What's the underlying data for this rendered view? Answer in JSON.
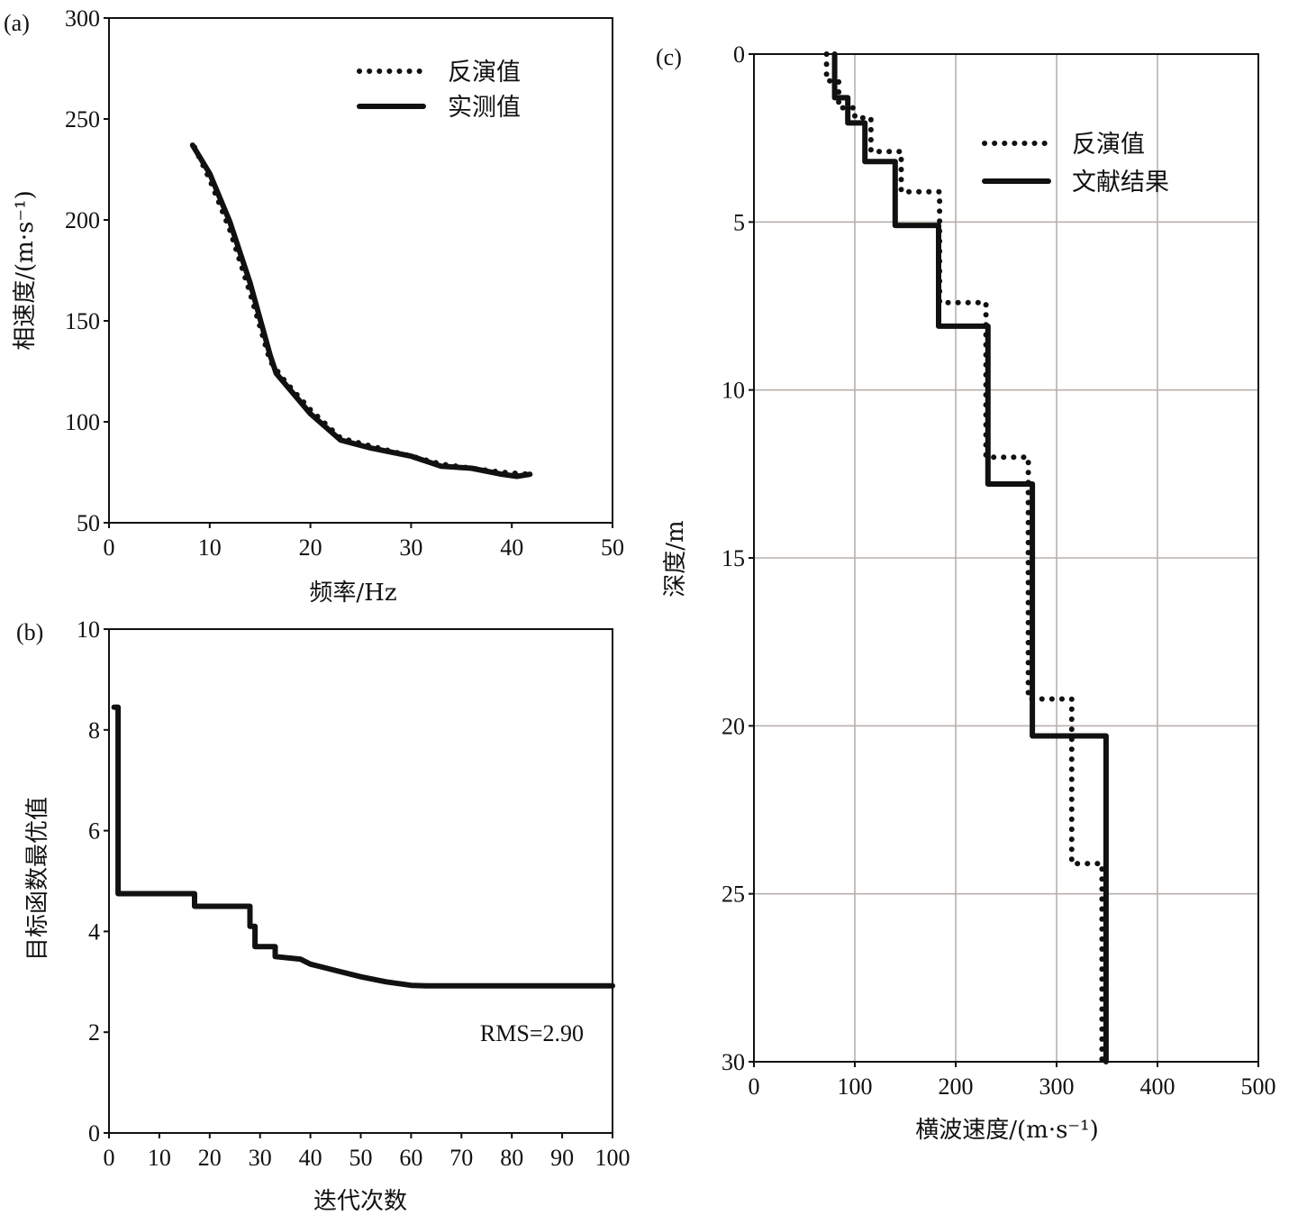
{
  "chart_data": [
    {
      "panel": "(a)",
      "type": "line",
      "xlabel": "频率/Hz",
      "ylabel": "相速度/(m·s⁻¹)",
      "xlim": [
        0,
        50
      ],
      "ylim": [
        50,
        300
      ],
      "xticks": [
        "0",
        "10",
        "20",
        "30",
        "40",
        "50"
      ],
      "yticks": [
        "50",
        "100",
        "150",
        "200",
        "250",
        "300"
      ],
      "legend": [
        "反演值",
        "实测值"
      ],
      "legend_position": "top-right",
      "grid": false,
      "series": [
        {
          "name": "反演值",
          "style": "dotted",
          "points": [
            [
              8.5,
              236
            ],
            [
              10,
              220
            ],
            [
              12,
              195
            ],
            [
              14,
              164
            ],
            [
              16,
              130
            ],
            [
              17.5,
              120
            ],
            [
              20,
              106
            ],
            [
              23,
              92
            ],
            [
              26,
              88
            ],
            [
              30,
              83
            ],
            [
              33,
              79
            ],
            [
              36,
              77
            ],
            [
              39,
              75
            ],
            [
              41.7,
              74
            ]
          ]
        },
        {
          "name": "实测值",
          "style": "solid",
          "points": [
            [
              8.3,
              237
            ],
            [
              10,
              223
            ],
            [
              12,
              199
            ],
            [
              14,
              169
            ],
            [
              16,
              133
            ],
            [
              16.6,
              124
            ],
            [
              20,
              104
            ],
            [
              23,
              91
            ],
            [
              26,
              87
            ],
            [
              30,
              83
            ],
            [
              33,
              78
            ],
            [
              36,
              77
            ],
            [
              39,
              74
            ],
            [
              40.5,
              73
            ],
            [
              41.8,
              74
            ]
          ]
        }
      ]
    },
    {
      "panel": "(b)",
      "type": "line",
      "xlabel": "迭代次数",
      "ylabel": "目标函数最优值",
      "xlim": [
        0,
        100
      ],
      "ylim": [
        0,
        10
      ],
      "xticks": [
        "0",
        "10",
        "20",
        "30",
        "40",
        "50",
        "60",
        "70",
        "80",
        "90",
        "100"
      ],
      "yticks": [
        "0",
        "2",
        "4",
        "6",
        "8",
        "10"
      ],
      "annotation": "RMS=2.90",
      "grid": false,
      "series": [
        {
          "style": "solid",
          "points": [
            [
              1,
              8.45
            ],
            [
              1.8,
              8.45
            ],
            [
              1.8,
              4.75
            ],
            [
              17,
              4.75
            ],
            [
              17,
              4.5
            ],
            [
              28,
              4.5
            ],
            [
              28,
              4.1
            ],
            [
              29,
              4.1
            ],
            [
              29,
              3.7
            ],
            [
              33,
              3.7
            ],
            [
              33,
              3.5
            ],
            [
              38,
              3.45
            ],
            [
              40,
              3.35
            ],
            [
              42,
              3.3
            ],
            [
              46,
              3.2
            ],
            [
              50,
              3.1
            ],
            [
              55,
              3.0
            ],
            [
              60,
              2.93
            ],
            [
              63,
              2.92
            ],
            [
              70,
              2.92
            ],
            [
              100,
              2.92
            ]
          ]
        }
      ]
    },
    {
      "panel": "(c)",
      "type": "line",
      "xlabel": "横波速度/(m·s⁻¹)",
      "ylabel": "深度/m",
      "xlim": [
        0,
        500
      ],
      "ylim": [
        0,
        30
      ],
      "y_inverted": true,
      "xticks": [
        "0",
        "100",
        "200",
        "300",
        "400",
        "500"
      ],
      "yticks": [
        "0",
        "5",
        "10",
        "15",
        "20",
        "25",
        "30"
      ],
      "legend": [
        "反演值",
        "文献结果"
      ],
      "legend_position": "top-right",
      "grid": true,
      "series": [
        {
          "name": "反演值",
          "style": "dotted",
          "points": [
            [
              72,
              0
            ],
            [
              72,
              0.8
            ],
            [
              84,
              0.8
            ],
            [
              84,
              1.6
            ],
            [
              100,
              1.6
            ],
            [
              100,
              1.9
            ],
            [
              116,
              1.9
            ],
            [
              116,
              2.9
            ],
            [
              146,
              2.9
            ],
            [
              146,
              4.1
            ],
            [
              184,
              4.1
            ],
            [
              184,
              7.4
            ],
            [
              230,
              7.4
            ],
            [
              230,
              12
            ],
            [
              272,
              12
            ],
            [
              272,
              19.2
            ],
            [
              315,
              19.2
            ],
            [
              315,
              24.1
            ],
            [
              345,
              24.1
            ],
            [
              345,
              30
            ]
          ]
        },
        {
          "name": "文献结果",
          "style": "solid",
          "points": [
            [
              80,
              0
            ],
            [
              80,
              1.3
            ],
            [
              93,
              1.3
            ],
            [
              93,
              2.05
            ],
            [
              110,
              2.05
            ],
            [
              110,
              3.2
            ],
            [
              140,
              3.2
            ],
            [
              140,
              5.1
            ],
            [
              183,
              5.1
            ],
            [
              183,
              8.1
            ],
            [
              232,
              8.1
            ],
            [
              232,
              12.8
            ],
            [
              276,
              12.8
            ],
            [
              276,
              20.3
            ],
            [
              349,
              20.3
            ],
            [
              349,
              30
            ]
          ]
        }
      ]
    }
  ]
}
